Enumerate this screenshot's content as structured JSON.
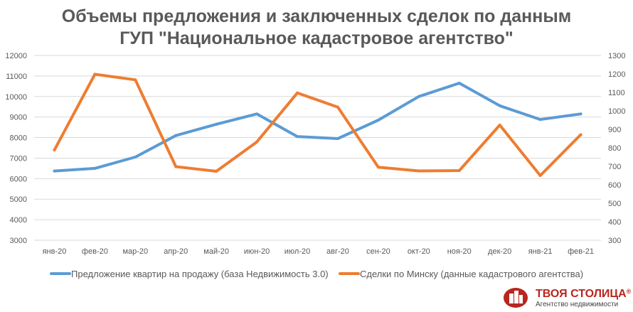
{
  "chart_data": {
    "type": "line",
    "title_lines": [
      "Объемы предложения и заключенных сделок по данным",
      "ГУП \"Национальное кадастровое агентство\""
    ],
    "categories": [
      "янв-20",
      "фев-20",
      "мар-20",
      "апр-20",
      "май-20",
      "июн-20",
      "июл-20",
      "авг-20",
      "сен-20",
      "окт-20",
      "ноя-20",
      "дек-20",
      "янв-21",
      "фев-21"
    ],
    "y_left": {
      "min": 3000,
      "max": 12000,
      "step": 1000,
      "ticks": [
        "3000",
        "4000",
        "5000",
        "6000",
        "7000",
        "8000",
        "9000",
        "10000",
        "11000",
        "12000"
      ]
    },
    "y_right": {
      "min": 300,
      "max": 1300,
      "step": 100,
      "ticks": [
        "300",
        "400",
        "500",
        "600",
        "700",
        "800",
        "900",
        "1000",
        "1100",
        "1200",
        "1300"
      ]
    },
    "grid": true,
    "legend_position": "bottom",
    "series": [
      {
        "name": "Предложение квартир на продажу (база Недвижимость 3.0)",
        "axis": "left",
        "color": "#5b9bd5",
        "values": [
          6370,
          6500,
          7050,
          8100,
          8650,
          9150,
          8050,
          7950,
          8850,
          10000,
          10650,
          9550,
          8880,
          9150
        ]
      },
      {
        "name": "Сделки по Минску (данные кадастрового агентства)",
        "axis": "right",
        "color": "#ed7d31",
        "values": [
          788,
          1198,
          1168,
          698,
          673,
          832,
          1097,
          1020,
          695,
          675,
          677,
          923,
          650,
          871
        ]
      }
    ]
  },
  "logo": {
    "name": "ТВОЯ СТОЛИЦА",
    "registered": "®",
    "subtitle": "Агентство недвижимости",
    "color": "#b8261f"
  }
}
